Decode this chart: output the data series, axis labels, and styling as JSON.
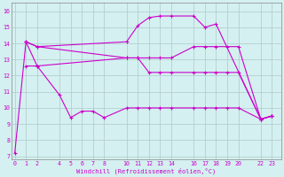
{
  "xlabel": "Windchill (Refroidissement éolien,°C)",
  "bg_color": "#d4f0f0",
  "line_color": "#cc00cc",
  "grid_color": "#b0c8c8",
  "xticks": [
    0,
    1,
    2,
    4,
    5,
    6,
    7,
    8,
    10,
    11,
    12,
    13,
    14,
    16,
    17,
    18,
    19,
    20,
    22,
    23
  ],
  "yticks": [
    7,
    8,
    9,
    10,
    11,
    12,
    13,
    14,
    15,
    16
  ],
  "ylim": [
    6.8,
    16.5
  ],
  "xlim": [
    -0.3,
    23.8
  ],
  "series": [
    {
      "x": [
        1,
        2,
        10,
        11,
        12,
        13,
        14,
        16,
        17,
        18,
        22,
        23
      ],
      "y": [
        14.1,
        13.8,
        14.1,
        15.1,
        15.6,
        15.7,
        15.7,
        15.7,
        15.0,
        15.2,
        9.3,
        9.5
      ]
    },
    {
      "x": [
        1,
        2,
        10,
        11,
        12,
        13,
        14,
        16,
        17,
        18,
        19,
        20,
        22,
        23
      ],
      "y": [
        14.1,
        13.8,
        13.1,
        13.1,
        13.1,
        13.1,
        13.1,
        13.8,
        13.8,
        13.8,
        13.8,
        13.8,
        9.3,
        9.5
      ]
    },
    {
      "x": [
        1,
        2,
        10,
        11,
        12,
        13,
        14,
        16,
        17,
        18,
        19,
        20,
        22,
        23
      ],
      "y": [
        12.6,
        12.6,
        13.1,
        13.1,
        12.2,
        12.2,
        12.2,
        12.2,
        12.2,
        12.2,
        12.2,
        12.2,
        9.3,
        9.5
      ]
    },
    {
      "x": [
        0,
        1,
        2,
        4,
        5,
        6,
        7,
        8,
        10,
        11,
        12,
        13,
        14,
        16,
        17,
        18,
        19,
        20,
        22,
        23
      ],
      "y": [
        7.2,
        14.1,
        12.6,
        10.8,
        9.4,
        9.8,
        9.8,
        9.4,
        10.0,
        10.0,
        10.0,
        10.0,
        10.0,
        10.0,
        10.0,
        10.0,
        10.0,
        10.0,
        9.3,
        9.5
      ]
    }
  ]
}
